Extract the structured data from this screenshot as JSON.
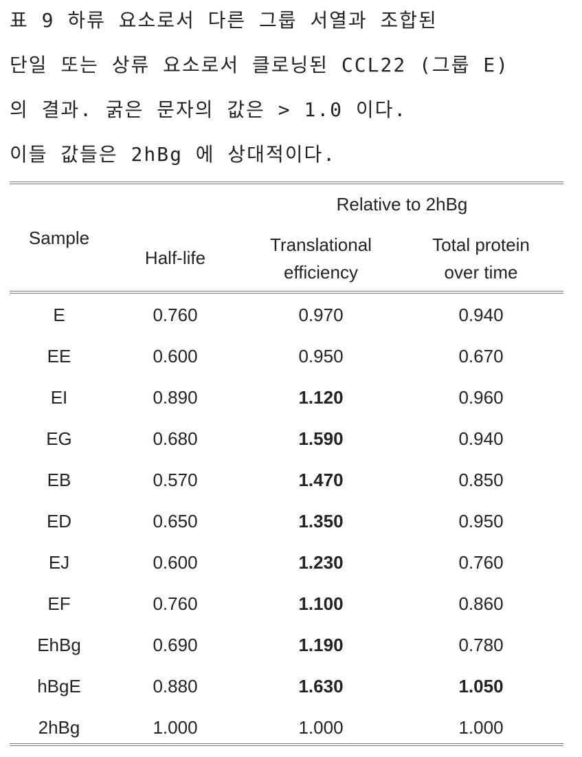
{
  "caption": {
    "lines": [
      "표 9 하류 요소로서 다른 그룹 서열과 조합된",
      "단일 또는 상류 요소로서 클로닝된 CCL22 (그룹 E)",
      "의 결과. 굵은 문자의 값은 > 1.0 이다.",
      "이들 값들은 2hBg 에 상대적이다."
    ]
  },
  "table": {
    "header": {
      "sample": "Sample",
      "group": "Relative to 2hBg",
      "columns": [
        {
          "lines": [
            "Half-life"
          ]
        },
        {
          "lines": [
            "Translational",
            "efficiency"
          ]
        },
        {
          "lines": [
            "Total protein",
            "over time"
          ]
        }
      ]
    },
    "rows": [
      {
        "cells": [
          "E",
          "0.760",
          "0.970",
          "0.940"
        ],
        "bold": [
          false,
          false,
          false,
          false
        ]
      },
      {
        "cells": [
          "EE",
          "0.600",
          "0.950",
          "0.670"
        ],
        "bold": [
          false,
          false,
          false,
          false
        ]
      },
      {
        "cells": [
          "EI",
          "0.890",
          "1.120",
          "0.960"
        ],
        "bold": [
          false,
          false,
          true,
          false
        ]
      },
      {
        "cells": [
          "EG",
          "0.680",
          "1.590",
          "0.940"
        ],
        "bold": [
          false,
          false,
          true,
          false
        ]
      },
      {
        "cells": [
          "EB",
          "0.570",
          "1.470",
          "0.850"
        ],
        "bold": [
          false,
          false,
          true,
          false
        ]
      },
      {
        "cells": [
          "ED",
          "0.650",
          "1.350",
          "0.950"
        ],
        "bold": [
          false,
          false,
          true,
          false
        ]
      },
      {
        "cells": [
          "EJ",
          "0.600",
          "1.230",
          "0.760"
        ],
        "bold": [
          false,
          false,
          true,
          false
        ]
      },
      {
        "cells": [
          "EF",
          "0.760",
          "1.100",
          "0.860"
        ],
        "bold": [
          false,
          false,
          true,
          false
        ]
      },
      {
        "cells": [
          "EhBg",
          "0.690",
          "1.190",
          "0.780"
        ],
        "bold": [
          false,
          false,
          true,
          false
        ]
      },
      {
        "cells": [
          "hBgE",
          "0.880",
          "1.630",
          "1.050"
        ],
        "bold": [
          false,
          false,
          true,
          true
        ]
      },
      {
        "cells": [
          "2hBg",
          "1.000",
          "1.000",
          "1.000"
        ],
        "bold": [
          false,
          false,
          false,
          false
        ]
      }
    ]
  }
}
